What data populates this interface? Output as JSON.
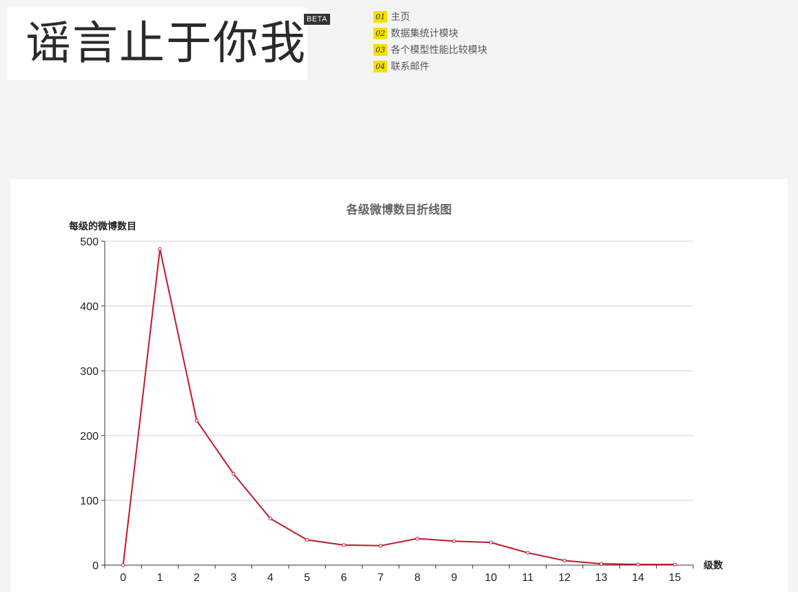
{
  "header": {
    "logo_text": "谣言止于你我",
    "beta_badge": "BETA",
    "nav": [
      {
        "num": "01",
        "label": "主页"
      },
      {
        "num": "02",
        "label": "数据集统计模块"
      },
      {
        "num": "03",
        "label": "各个模型性能比较模块"
      },
      {
        "num": "04",
        "label": "联系邮件"
      }
    ]
  },
  "colors": {
    "series": "#c0172a",
    "accent": "#f5e000",
    "grid": "#cccccc"
  },
  "chart_data": {
    "type": "line",
    "title": "各级微博数目折线图",
    "xlabel": "级数",
    "ylabel": "每级的微博数目",
    "ylim": [
      0,
      500
    ],
    "yticks": [
      0,
      100,
      200,
      300,
      400,
      500
    ],
    "categories": [
      "0",
      "1",
      "2",
      "3",
      "4",
      "5",
      "6",
      "7",
      "8",
      "9",
      "10",
      "11",
      "12",
      "13",
      "14",
      "15"
    ],
    "series": [
      {
        "values": [
          0,
          488,
          223,
          141,
          72,
          39,
          31,
          30,
          41,
          37,
          35,
          19,
          7,
          2,
          1,
          1
        ]
      }
    ],
    "grid": true
  }
}
